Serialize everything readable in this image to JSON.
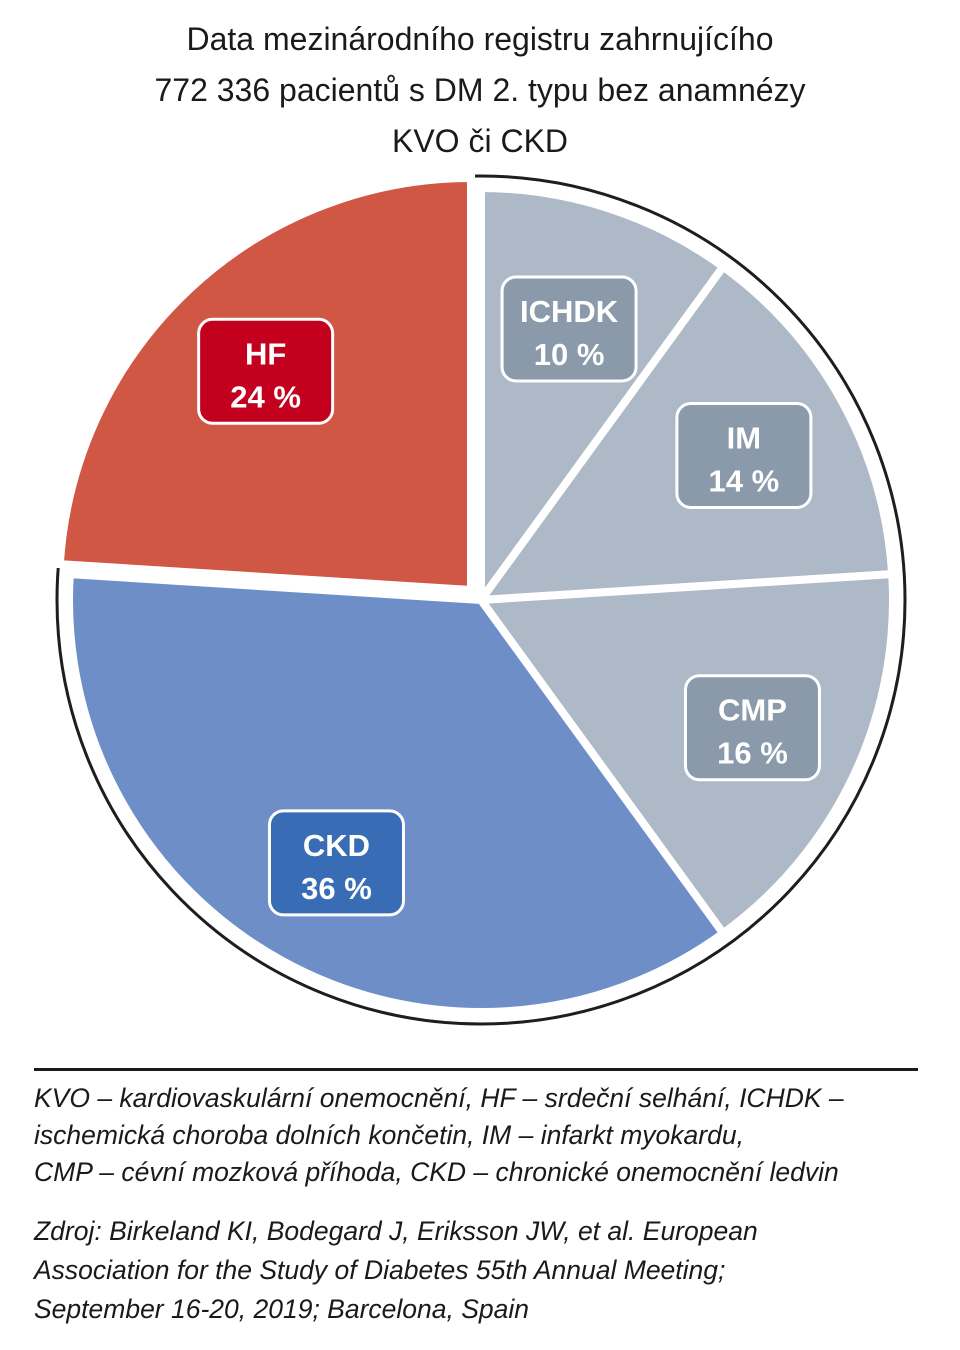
{
  "chart_data": {
    "type": "pie",
    "title": [
      "Data mezinárodního registru zahrnujícího",
      "772 336 pacientů s DM 2. typu bez anamnézy",
      "KVO či CKD"
    ],
    "start": "12 o'clock, clockwise",
    "slices": [
      {
        "label": "ICHDK",
        "value": 10,
        "value_label": "10 %",
        "color": "#adb9c7",
        "label_color": "#8a9aab",
        "exploded": false
      },
      {
        "label": "IM",
        "value": 14,
        "value_label": "14 %",
        "color": "#adb9c7",
        "label_color": "#8a9aab",
        "exploded": false
      },
      {
        "label": "CMP",
        "value": 16,
        "value_label": "16 %",
        "color": "#adb9c7",
        "label_color": "#8a9aab",
        "exploded": false
      },
      {
        "label": "CKD",
        "value": 36,
        "value_label": "36 %",
        "color": "#6e8ec7",
        "label_color": "#386db5",
        "exploded": false
      },
      {
        "label": "HF",
        "value": 24,
        "value_label": "24 %",
        "color": "#d05744",
        "label_color": "#c4001f",
        "exploded": true
      }
    ]
  },
  "notes": [
    "KVO – kardiovaskulární onemocnění, HF – srdeční selhání, ICHDK –",
    "ischemická choroba dolních končetin, IM – infarkt myokardu,",
    "CMP – cévní mozková příhoda, CKD – chronické onemocnění ledvin"
  ],
  "source": [
    "Zdroj: Birkeland KI, Bodegard J, Eriksson JW, et al. European",
    "Association for the Study of Diabetes 55th Annual Meeting;",
    "September 16-20, 2019; Barcelona, Spain"
  ]
}
